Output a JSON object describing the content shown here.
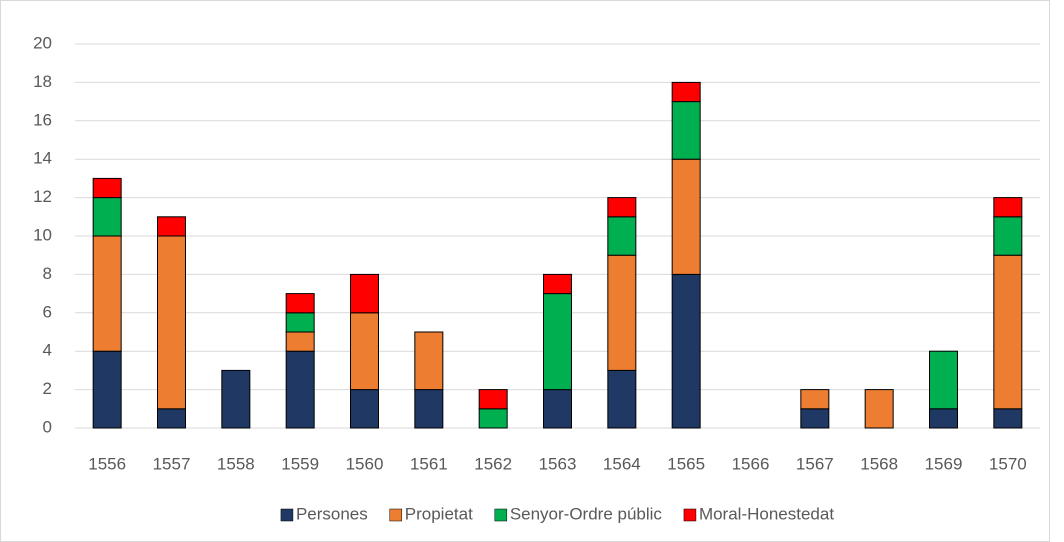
{
  "chart_data": {
    "type": "stacked_bar",
    "categories": [
      "1556",
      "1557",
      "1558",
      "1559",
      "1560",
      "1561",
      "1562",
      "1563",
      "1564",
      "1565",
      "1566",
      "1567",
      "1568",
      "1569",
      "1570"
    ],
    "series": [
      {
        "name": "Persones",
        "color": "#1f3864",
        "values": [
          4,
          1,
          3,
          4,
          2,
          2,
          0,
          2,
          3,
          8,
          0,
          1,
          0,
          1,
          1
        ]
      },
      {
        "name": "Propietat",
        "color": "#ed7d31",
        "values": [
          6,
          9,
          0,
          1,
          4,
          3,
          0,
          0,
          6,
          6,
          0,
          1,
          2,
          0,
          8
        ]
      },
      {
        "name": "Senyor-Ordre públic",
        "color": "#00b050",
        "values": [
          2,
          0,
          0,
          1,
          0,
          0,
          1,
          5,
          2,
          3,
          0,
          0,
          0,
          3,
          2
        ]
      },
      {
        "name": "Moral-Honestedat",
        "color": "#ff0000",
        "values": [
          1,
          1,
          0,
          1,
          2,
          0,
          1,
          1,
          1,
          1,
          0,
          0,
          0,
          0,
          1
        ]
      }
    ],
    "ylim": [
      0,
      20
    ],
    "yticks": [
      0,
      2,
      4,
      6,
      8,
      10,
      12,
      14,
      16,
      18,
      20
    ],
    "grid": true,
    "legend": "bottom"
  }
}
